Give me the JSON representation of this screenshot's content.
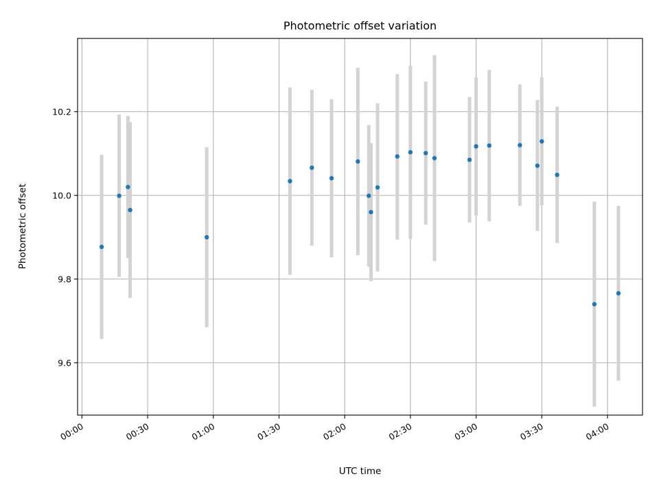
{
  "chart_data": {
    "type": "scatter",
    "title": "Photometric offset variation",
    "xlabel": "UTC time",
    "ylabel": "Photometric offset",
    "x_unit": "UTC HH:MM",
    "xlim": [
      "-00:02",
      "04:16"
    ],
    "ylim": [
      9.475,
      10.375
    ],
    "grid": true,
    "xticks": [
      "00:00",
      "00:30",
      "01:00",
      "01:30",
      "02:00",
      "02:30",
      "03:00",
      "03:30",
      "04:00"
    ],
    "yticks": [
      9.6,
      9.8,
      10.0,
      10.2
    ],
    "ytick_labels": [
      "9.6",
      "9.8",
      "10.0",
      "10.2"
    ],
    "colors": {
      "marker": "#1f77b4",
      "errorbar": "#d3d3d3",
      "grid": "#b0b0b0"
    },
    "points": [
      {
        "x": "00:09",
        "y": 9.877,
        "ylo": 9.657,
        "yhi": 10.097
      },
      {
        "x": "00:17",
        "y": 9.999,
        "ylo": 9.805,
        "yhi": 10.193
      },
      {
        "x": "00:21",
        "y": 10.02,
        "ylo": 9.85,
        "yhi": 10.19
      },
      {
        "x": "00:22",
        "y": 9.965,
        "ylo": 9.755,
        "yhi": 10.175
      },
      {
        "x": "00:57",
        "y": 9.9,
        "ylo": 9.685,
        "yhi": 10.115
      },
      {
        "x": "01:35",
        "y": 10.034,
        "ylo": 9.81,
        "yhi": 10.258
      },
      {
        "x": "01:45",
        "y": 10.066,
        "ylo": 9.88,
        "yhi": 10.252
      },
      {
        "x": "01:54",
        "y": 10.041,
        "ylo": 9.852,
        "yhi": 10.23
      },
      {
        "x": "02:06",
        "y": 10.081,
        "ylo": 9.857,
        "yhi": 10.305
      },
      {
        "x": "02:11",
        "y": 9.999,
        "ylo": 9.83,
        "yhi": 10.168
      },
      {
        "x": "02:12",
        "y": 9.96,
        "ylo": 9.795,
        "yhi": 10.125
      },
      {
        "x": "02:15",
        "y": 10.019,
        "ylo": 9.818,
        "yhi": 10.22
      },
      {
        "x": "02:24",
        "y": 10.093,
        "ylo": 9.894,
        "yhi": 10.29
      },
      {
        "x": "02:30",
        "y": 10.103,
        "ylo": 9.896,
        "yhi": 10.31
      },
      {
        "x": "02:37",
        "y": 10.101,
        "ylo": 9.93,
        "yhi": 10.272
      },
      {
        "x": "02:41",
        "y": 10.089,
        "ylo": 9.843,
        "yhi": 10.335
      },
      {
        "x": "02:57",
        "y": 10.085,
        "ylo": 9.935,
        "yhi": 10.235
      },
      {
        "x": "03:00",
        "y": 10.117,
        "ylo": 9.952,
        "yhi": 10.282
      },
      {
        "x": "03:06",
        "y": 10.119,
        "ylo": 9.938,
        "yhi": 10.3
      },
      {
        "x": "03:20",
        "y": 10.12,
        "ylo": 9.975,
        "yhi": 10.265
      },
      {
        "x": "03:28",
        "y": 10.071,
        "ylo": 9.915,
        "yhi": 10.228
      },
      {
        "x": "03:30",
        "y": 10.129,
        "ylo": 9.976,
        "yhi": 10.282
      },
      {
        "x": "03:37",
        "y": 10.049,
        "ylo": 9.886,
        "yhi": 10.212
      },
      {
        "x": "03:54",
        "y": 9.74,
        "ylo": 9.495,
        "yhi": 9.985
      },
      {
        "x": "04:05",
        "y": 9.766,
        "ylo": 9.557,
        "yhi": 9.975
      }
    ]
  }
}
